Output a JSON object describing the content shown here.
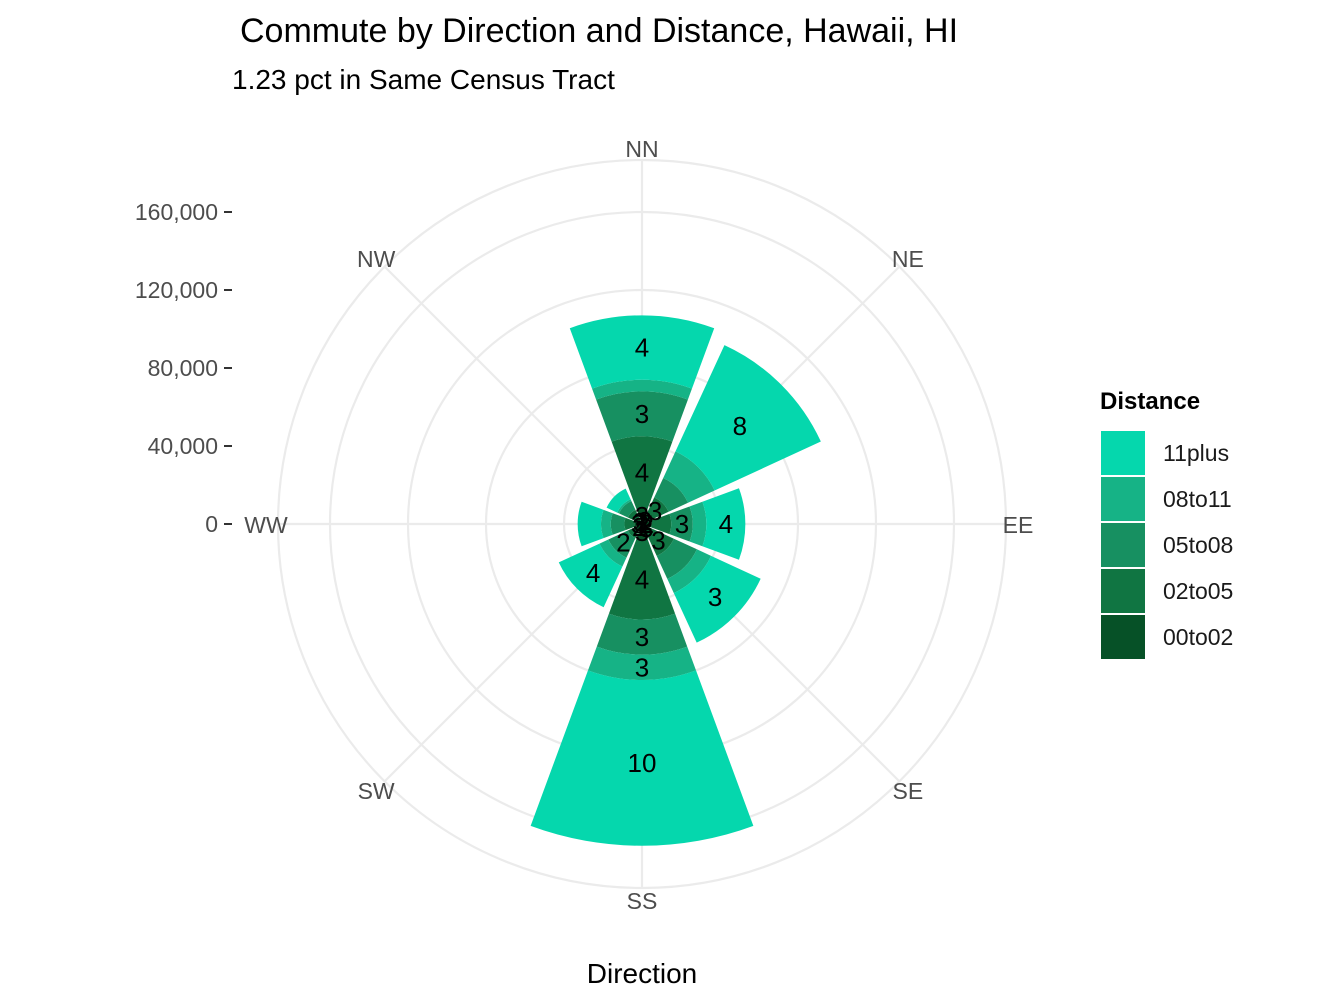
{
  "title": "Commute by Direction and Distance, Hawaii, HI",
  "subtitle": "1.23 pct in Same Census Tract",
  "chart_data": {
    "type": "polar-stacked-bar",
    "xlabel": "Direction",
    "ylabel": "",
    "ylim": [
      0,
      160000
    ],
    "y_ticks": [
      0,
      40000,
      80000,
      120000,
      160000
    ],
    "y_tick_labels": [
      "0",
      "40,000",
      "80,000",
      "120,000",
      "160,000"
    ],
    "categories": [
      "NN",
      "NE",
      "EE",
      "SE",
      "SS",
      "SW",
      "WW",
      "NW"
    ],
    "grid": true,
    "legend_title": "Distance",
    "legend_position": "right",
    "series": [
      {
        "name": "00to02",
        "color": "#065127",
        "values": [
          8000,
          4000,
          5000,
          6000,
          8000,
          4000,
          4000,
          3000
        ]
      },
      {
        "name": "02to05",
        "color": "#107542",
        "values": [
          37000,
          11000,
          10000,
          12000,
          41000,
          4000,
          5000,
          5000
        ]
      },
      {
        "name": "05to08",
        "color": "#179061",
        "values": [
          23000,
          11000,
          11000,
          13000,
          18000,
          11000,
          7000,
          5000
        ]
      },
      {
        "name": "08to11",
        "color": "#16b386",
        "values": [
          6000,
          15000,
          7000,
          8000,
          13000,
          5000,
          5000,
          1000
        ]
      },
      {
        "name": "11plus",
        "color": "#05d7ad",
        "values": [
          33000,
          60000,
          20000,
          28000,
          85000,
          23000,
          12000,
          6000
        ]
      }
    ],
    "labels": [
      {
        "category": "NN",
        "series": "00to02",
        "text": "3"
      },
      {
        "category": "NN",
        "series": "02to05",
        "text": "4"
      },
      {
        "category": "NN",
        "series": "05to08",
        "text": "3"
      },
      {
        "category": "NN",
        "series": "11plus",
        "text": "4"
      },
      {
        "category": "NE",
        "series": "00to02",
        "text": "2"
      },
      {
        "category": "NE",
        "series": "02to05",
        "text": "3"
      },
      {
        "category": "NE",
        "series": "11plus",
        "text": "8"
      },
      {
        "category": "EE",
        "series": "00to02",
        "text": "2"
      },
      {
        "category": "EE",
        "series": "05to08",
        "text": "3"
      },
      {
        "category": "EE",
        "series": "11plus",
        "text": "4"
      },
      {
        "category": "SE",
        "series": "00to02",
        "text": "3"
      },
      {
        "category": "SE",
        "series": "02to05",
        "text": "3"
      },
      {
        "category": "SE",
        "series": "11plus",
        "text": "3"
      },
      {
        "category": "SS",
        "series": "00to02",
        "text": "3"
      },
      {
        "category": "SS",
        "series": "02to05",
        "text": "4"
      },
      {
        "category": "SS",
        "series": "05to08",
        "text": "3"
      },
      {
        "category": "SS",
        "series": "08to11",
        "text": "3"
      },
      {
        "category": "SS",
        "series": "11plus",
        "text": "10"
      },
      {
        "category": "SW",
        "series": "00to02",
        "text": "2"
      },
      {
        "category": "SW",
        "series": "05to08",
        "text": "2"
      },
      {
        "category": "SW",
        "series": "11plus",
        "text": "4"
      },
      {
        "category": "WW",
        "series": "00to02",
        "text": "3"
      },
      {
        "category": "NW",
        "series": "00to02",
        "text": "3"
      }
    ],
    "legend_order": [
      "11plus",
      "08to11",
      "05to08",
      "02to05",
      "00to02"
    ]
  }
}
